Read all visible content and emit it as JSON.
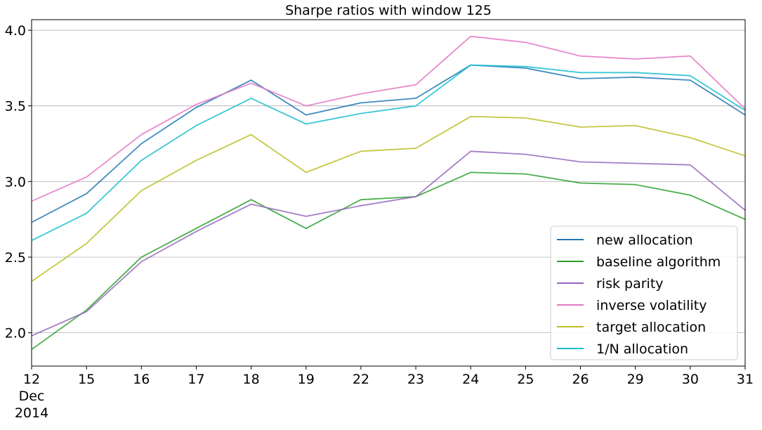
{
  "chart_data": {
    "type": "line",
    "title": "Sharpe ratios with window 125",
    "xlabel": "",
    "ylabel": "",
    "x": [
      "12",
      "15",
      "16",
      "17",
      "18",
      "19",
      "22",
      "23",
      "24",
      "25",
      "26",
      "29",
      "30",
      "31"
    ],
    "x_sublabels": [
      "Dec",
      "2014"
    ],
    "ylim": [
      1.78,
      4.07
    ],
    "yticks": [
      "2.0",
      "2.5",
      "3.0",
      "3.5",
      "4.0"
    ],
    "grid": "horizontal",
    "legend_position": "lower-right",
    "series": [
      {
        "name": "new allocation",
        "color": "#1f77b4",
        "values": [
          2.73,
          2.92,
          3.25,
          3.49,
          3.67,
          3.44,
          3.52,
          3.55,
          3.77,
          3.75,
          3.68,
          3.69,
          3.67,
          3.44
        ]
      },
      {
        "name": "baseline algorithm",
        "color": "#2ca02c",
        "values": [
          1.89,
          2.15,
          2.5,
          2.69,
          2.88,
          2.69,
          2.88,
          2.9,
          3.06,
          3.05,
          2.99,
          2.98,
          2.91,
          2.75
        ]
      },
      {
        "name": "risk parity",
        "color": "#9467bd",
        "values": [
          1.98,
          2.14,
          2.47,
          2.67,
          2.85,
          2.77,
          2.84,
          2.9,
          3.2,
          3.18,
          3.13,
          3.12,
          3.11,
          2.81
        ]
      },
      {
        "name": "inverse volatility",
        "color": "#e377c2",
        "values": [
          2.87,
          3.03,
          3.31,
          3.51,
          3.65,
          3.5,
          3.58,
          3.64,
          3.96,
          3.92,
          3.83,
          3.81,
          3.83,
          3.48
        ]
      },
      {
        "name": "target allocation",
        "color": "#bcbd22",
        "values": [
          2.34,
          2.59,
          2.94,
          3.14,
          3.31,
          3.06,
          3.2,
          3.22,
          3.43,
          3.42,
          3.36,
          3.37,
          3.29,
          3.17
        ]
      },
      {
        "name": "1/N allocation",
        "color": "#17becf",
        "values": [
          2.61,
          2.79,
          3.14,
          3.37,
          3.55,
          3.38,
          3.45,
          3.5,
          3.77,
          3.76,
          3.72,
          3.72,
          3.7,
          3.47
        ]
      }
    ]
  }
}
